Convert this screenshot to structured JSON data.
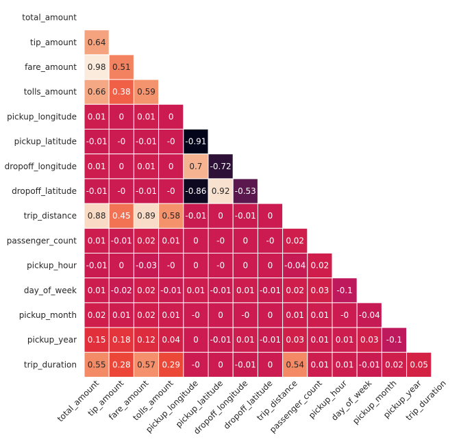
{
  "chart_data": {
    "type": "heatmap",
    "title": "",
    "layout": "lower-triangle",
    "grid": false,
    "legend": "none",
    "labels": [
      "total_amount",
      "tip_amount",
      "fare_amount",
      "tolls_amount",
      "pickup_longitude",
      "pickup_latitude",
      "dropoff_longitude",
      "dropoff_latitude",
      "trip_distance",
      "passenger_count",
      "pickup_hour",
      "day_of_week",
      "pickup_month",
      "pickup_year",
      "trip_duration"
    ],
    "value_range": [
      -0.91,
      0.98
    ],
    "rows": [
      [],
      [
        0.64
      ],
      [
        0.98,
        0.51
      ],
      [
        0.66,
        0.38,
        0.59
      ],
      [
        0.01,
        0,
        0.01,
        0
      ],
      [
        -0.01,
        "-0",
        -0.01,
        "-0",
        -0.91
      ],
      [
        0.01,
        0,
        0.01,
        0,
        0.7,
        -0.72
      ],
      [
        -0.01,
        "-0",
        -0.01,
        "-0",
        -0.86,
        0.92,
        -0.53
      ],
      [
        0.88,
        0.45,
        0.89,
        0.58,
        -0.01,
        0,
        -0.01,
        0
      ],
      [
        0.01,
        -0.01,
        0.02,
        0.01,
        0,
        "-0",
        0,
        "-0",
        0.02
      ],
      [
        -0.01,
        0,
        -0.03,
        "-0",
        0,
        "-0",
        0,
        0,
        -0.04,
        0.02
      ],
      [
        0.01,
        -0.02,
        0.02,
        -0.01,
        0.01,
        -0.01,
        0.01,
        -0.01,
        0.02,
        0.03,
        -0.1
      ],
      [
        0.02,
        0.01,
        0.02,
        0.01,
        "-0",
        0,
        "-0",
        0,
        0.01,
        0.01,
        "-0",
        -0.04
      ],
      [
        0.15,
        0.18,
        0.12,
        0.04,
        0,
        -0.01,
        0.01,
        -0.01,
        0.03,
        0.01,
        0.01,
        0.03,
        -0.1
      ],
      [
        0.55,
        0.28,
        0.57,
        0.29,
        "-0",
        0,
        -0.01,
        0,
        0.54,
        0.01,
        0.01,
        -0.01,
        0.02,
        0.05
      ]
    ]
  }
}
